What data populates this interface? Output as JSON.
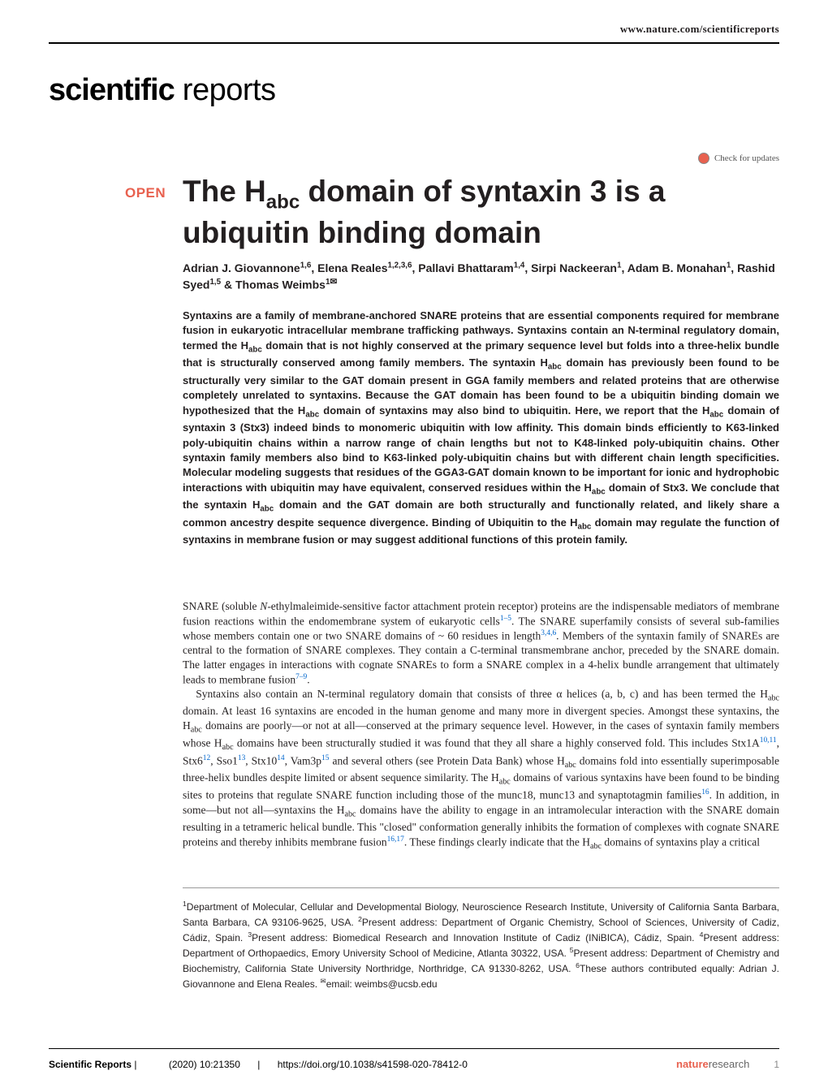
{
  "header": {
    "url": "www.nature.com/scientificreports",
    "journal_bold": "scientific",
    "journal_light": " reports",
    "check_updates": "Check for updates"
  },
  "article": {
    "open_label": "OPEN",
    "title_html": "The H<sub>abc</sub> domain of syntaxin 3 is a ubiquitin binding domain",
    "authors_html": "Adrian J. Giovannone<sup>1,6</sup>, Elena Reales<sup>1,2,3,6</sup>, Pallavi Bhattaram<sup>1,4</sup>, Sirpi Nackeeran<sup>1</sup>, Adam B. Monahan<sup>1</sup>, Rashid Syed<sup>1,5</sup> & Thomas Weimbs<sup>1</sup><span class=\"mail-icon\">✉</span>",
    "abstract_html": "Syntaxins are a family of membrane-anchored SNARE proteins that are essential components required for membrane fusion in eukaryotic intracellular membrane trafficking pathways. Syntaxins contain an N-terminal regulatory domain, termed the H<sub>abc</sub> domain that is not highly conserved at the primary sequence level but folds into a three-helix bundle that is structurally conserved among family members. The syntaxin H<sub>abc</sub> domain has previously been found to be structurally very similar to the GAT domain present in GGA family members and related proteins that are otherwise completely unrelated to syntaxins. Because the GAT domain has been found to be a ubiquitin binding domain we hypothesized that the H<sub>abc</sub> domain of syntaxins may also bind to ubiquitin. Here, we report that the H<sub>abc</sub> domain of syntaxin 3 (Stx3) indeed binds to monomeric ubiquitin with low affinity. This domain binds efficiently to K63-linked poly-ubiquitin chains within a narrow range of chain lengths but not to K48-linked poly-ubiquitin chains. Other syntaxin family members also bind to K63-linked poly-ubiquitin chains but with different chain length specificities. Molecular modeling suggests that residues of the GGA3-GAT domain known to be important for ionic and hydrophobic interactions with ubiquitin may have equivalent, conserved residues within the H<sub>abc</sub> domain of Stx3. We conclude that the syntaxin H<sub>abc</sub> domain and the GAT domain are both structurally and functionally related, and likely share a common ancestry despite sequence divergence. Binding of Ubiquitin to the H<sub>abc</sub> domain may regulate the function of syntaxins in membrane fusion or may suggest additional functions of this protein family."
  },
  "body": {
    "para1_html": "SNARE (soluble <i>N</i>-ethylmaleimide-sensitive factor attachment protein receptor) proteins are the indispensable mediators of membrane fusion reactions within the endomembrane system of eukaryotic cells<sup class=\"cite-link\">1–5</sup>. The SNARE superfamily consists of several sub-families whose members contain one or two SNARE domains of ~ 60 residues in length<sup class=\"cite-link\">3,4,6</sup>. Members of the syntaxin family of SNAREs are central to the formation of SNARE complexes. They contain a C-terminal transmembrane anchor, preceded by the SNARE domain. The latter engages in interactions with cognate SNAREs to form a SNARE complex in a 4-helix bundle arrangement that ultimately leads to membrane fusion<sup class=\"cite-link\">7–9</sup>.",
    "para2_html": "Syntaxins also contain an N-terminal regulatory domain that consists of three α helices (a, b, c) and has been termed the H<sub>abc</sub> domain. At least 16 syntaxins are encoded in the human genome and many more in divergent species. Amongst these syntaxins, the H<sub>abc</sub> domains are poorly—or not at all—conserved at the primary sequence level. However, in the cases of syntaxin family members whose H<sub>abc</sub> domains have been structurally studied it was found that they all share a highly conserved fold. This includes Stx1A<sup class=\"cite-link\">10,11</sup>, Stx6<sup class=\"cite-link\">12</sup>, Sso1<sup class=\"cite-link\">13</sup>, Stx10<sup class=\"cite-link\">14</sup>, Vam3p<sup class=\"cite-link\">15</sup> and several others (see Protein Data Bank) whose H<sub>abc</sub> domains fold into essentially superimposable three-helix bundles despite limited or absent sequence similarity. The H<sub>abc</sub> domains of various syntaxins have been found to be binding sites to proteins that regulate SNARE function including those of the munc18, munc13 and synaptotagmin families<sup class=\"cite-link\">16</sup>. In addition, in some—but not all—syntaxins the H<sub>abc</sub> domains have the ability to engage in an intramolecular interaction with the SNARE domain resulting in a tetrameric helical bundle. This \"closed\" conformation generally inhibits the formation of complexes with cognate SNARE proteins and thereby inhibits membrane fusion<sup class=\"cite-link\">16,17</sup>. These findings clearly indicate that the H<sub>abc</sub> domains of syntaxins play a critical"
  },
  "affiliations_html": "<sup>1</sup>Department of Molecular, Cellular and Developmental Biology, Neuroscience Research Institute, University of California Santa Barbara, Santa Barbara, CA 93106-9625, USA. <sup>2</sup>Present address: Department of Organic Chemistry, School of Sciences, University of Cadiz, Cádiz, Spain. <sup>3</sup>Present address: Biomedical Research and Innovation Institute of Cadiz (INiBICA), Cádiz, Spain. <sup>4</sup>Present address: Department of Orthopaedics, Emory University School of Medicine, Atlanta 30322, USA. <sup>5</sup>Present address: Department of Chemistry and Biochemistry, California State University Northridge, Northridge, CA 91330-8262, USA. <sup>6</sup>These authors contributed equally: Adrian J. Giovannone and Elena Reales. <sup>✉</sup>email: weimbs@ucsb.edu",
  "footer": {
    "journal": "Scientific Reports",
    "citation": "(2020) 10:21350",
    "doi": "https://doi.org/10.1038/s41598-020-78412-0",
    "branding_bold": "nature",
    "branding_rest": "research",
    "page": "1"
  },
  "colors": {
    "accent": "#e8614f",
    "cite_link": "#0066cc",
    "text": "#231f20"
  }
}
